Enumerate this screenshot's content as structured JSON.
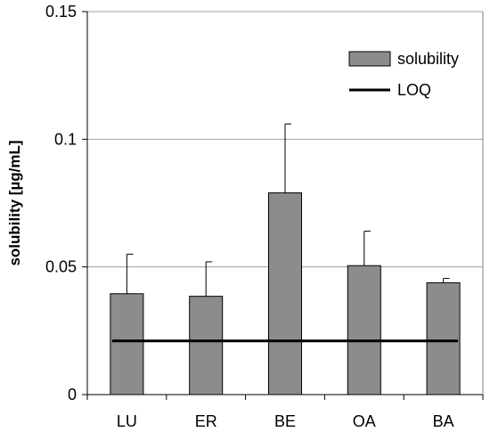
{
  "chart_data": {
    "type": "bar",
    "title": "",
    "xlabel": "",
    "ylabel": "solubility [µg/mL]",
    "categories": [
      "LU",
      "ER",
      "BE",
      "OA",
      "BA"
    ],
    "series": [
      {
        "name": "solubility",
        "values": [
          0.0395,
          0.0385,
          0.079,
          0.0505,
          0.0438
        ],
        "error_upper": [
          0.0155,
          0.0135,
          0.027,
          0.0135,
          0.0017
        ]
      }
    ],
    "reference_line": {
      "name": "LOQ",
      "value": 0.021
    },
    "ylim": [
      0,
      0.15
    ],
    "yticks": [
      "0",
      "0.05",
      "0.1",
      "0.15"
    ],
    "grid": "horizontal",
    "legend_position": "top-right",
    "colors": {
      "bar": "#8c8c8c",
      "bar_edge": "#000000",
      "loq_line": "#000000",
      "grid": "#a0a0a0"
    }
  }
}
